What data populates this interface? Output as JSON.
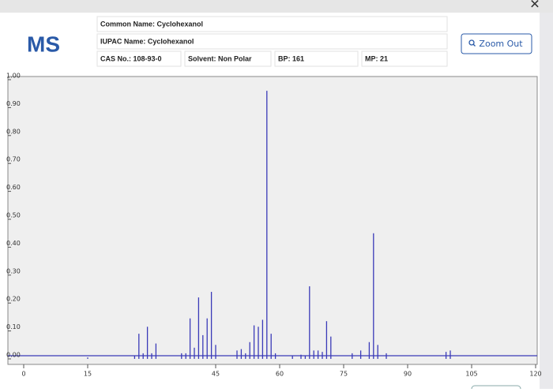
{
  "header": {
    "logo": "MS",
    "close": "✕",
    "fields": [
      "Common Name: Cyclohexanol",
      "IUPAC Name: Cyclohexanol",
      "CAS No.: 108-93-0",
      "Solvent: Non Polar",
      "BP: 161",
      "MP: 21"
    ],
    "button": "Zoom Out"
  },
  "chart_data": {
    "type": "bar",
    "color": "#3a3ab8",
    "x": [
      15,
      26,
      27,
      28,
      29,
      30,
      31,
      37,
      38,
      39,
      40,
      41,
      42,
      43,
      44,
      45,
      50,
      51,
      52,
      53,
      54,
      55,
      56,
      57,
      58,
      59,
      63,
      65,
      66,
      67,
      68,
      69,
      70,
      71,
      72,
      77,
      79,
      81,
      82,
      83,
      85,
      99,
      100
    ],
    "values": [
      0.005,
      0.01,
      0.09,
      0.02,
      0.115,
      0.02,
      0.055,
      0.02,
      0.02,
      0.145,
      0.04,
      0.22,
      0.085,
      0.145,
      0.24,
      0.05,
      0.03,
      0.035,
      0.02,
      0.06,
      0.12,
      0.115,
      0.14,
      0.96,
      0.09,
      0.02,
      0.01,
      0.015,
      0.01,
      0.26,
      0.03,
      0.03,
      0.025,
      0.135,
      0.08,
      0.02,
      0.03,
      0.06,
      0.45,
      0.05,
      0.02,
      0.025,
      0.03
    ],
    "xlim": [
      0,
      120
    ],
    "xticks": [
      0,
      15,
      45,
      60,
      75,
      90,
      105,
      120
    ],
    "ylim": [
      0,
      1
    ],
    "yticks": [
      {
        "value": 0,
        "label": "0.00"
      },
      {
        "value": 0.1,
        "label": "0.10"
      },
      {
        "value": 0.2,
        "label": "0.20"
      },
      {
        "value": 0.3,
        "label": "0.30"
      },
      {
        "value": 0.4,
        "label": "0.40"
      },
      {
        "value": 0.5,
        "label": "0.50"
      },
      {
        "value": 0.6,
        "label": "0.60"
      },
      {
        "value": 0.7,
        "label": "0.70"
      },
      {
        "value": 0.8,
        "label": "0.80"
      },
      {
        "value": 0.9,
        "label": "0.90"
      },
      {
        "value": 1,
        "label": "1.00"
      }
    ],
    "grid": false
  }
}
